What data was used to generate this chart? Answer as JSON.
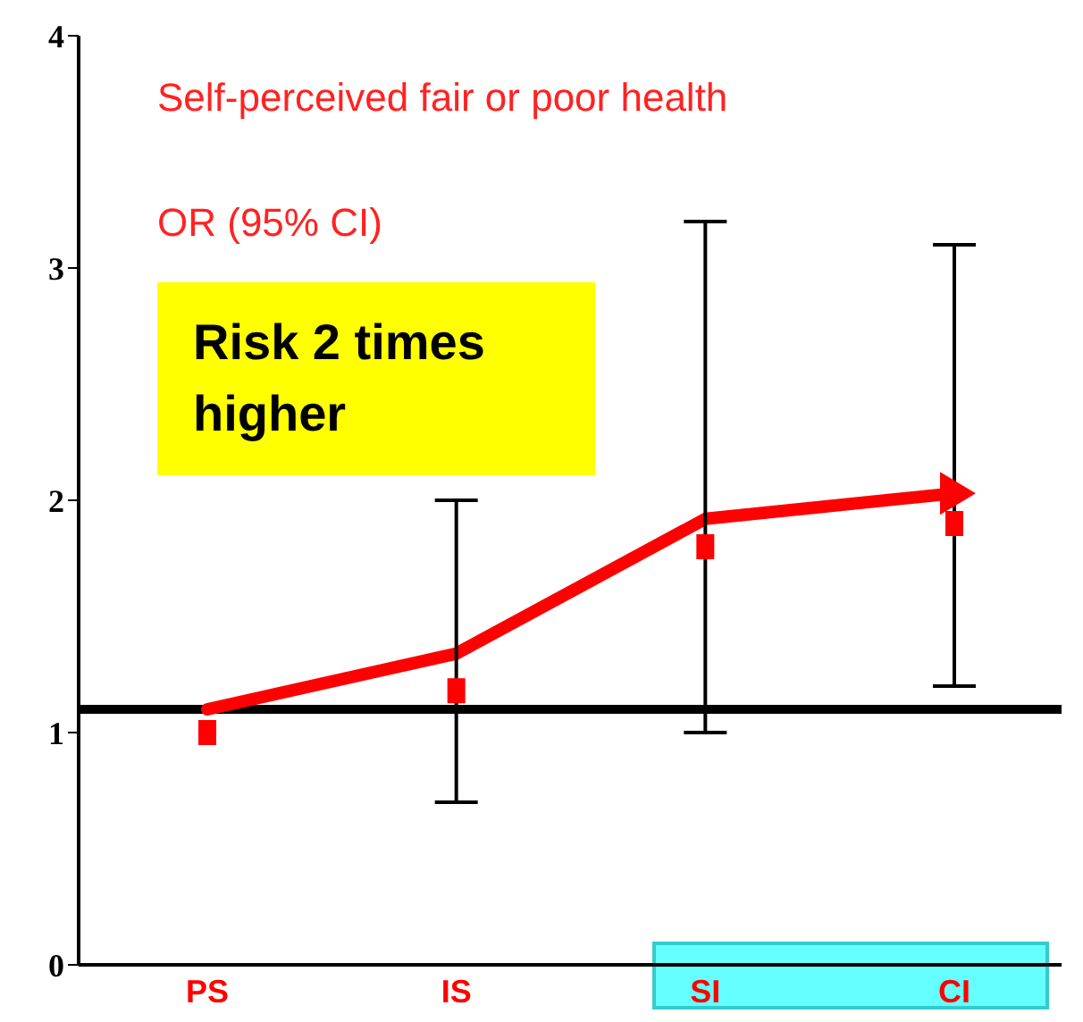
{
  "chart_data": {
    "type": "scatter",
    "title": "Self-perceived fair or poor health",
    "ylabel": "OR (95% CI)",
    "categories": [
      "PS",
      "IS",
      "SI",
      "CI"
    ],
    "series": [
      {
        "type": "line",
        "color": "#ff0000",
        "values": [
          1.1,
          1.34,
          1.92,
          2.03
        ],
        "marker": "none"
      },
      {
        "color": "#ff0000",
        "values": [
          1.0,
          1.18,
          1.8,
          1.9
        ],
        "marker": "square",
        "errors": [
          null,
          [
            0.7,
            2.0
          ],
          [
            1.0,
            3.2
          ],
          [
            1.2,
            3.1
          ]
        ]
      }
    ],
    "ylim": [
      0,
      4
    ],
    "yticks": [
      0,
      1,
      2,
      3,
      4
    ],
    "grid": false,
    "legend": false,
    "ref_lines": [
      {
        "axis": "y",
        "value": 1.1,
        "color": "#000000"
      }
    ],
    "annotations": [
      "Risk 2 times higher"
    ]
  }
}
